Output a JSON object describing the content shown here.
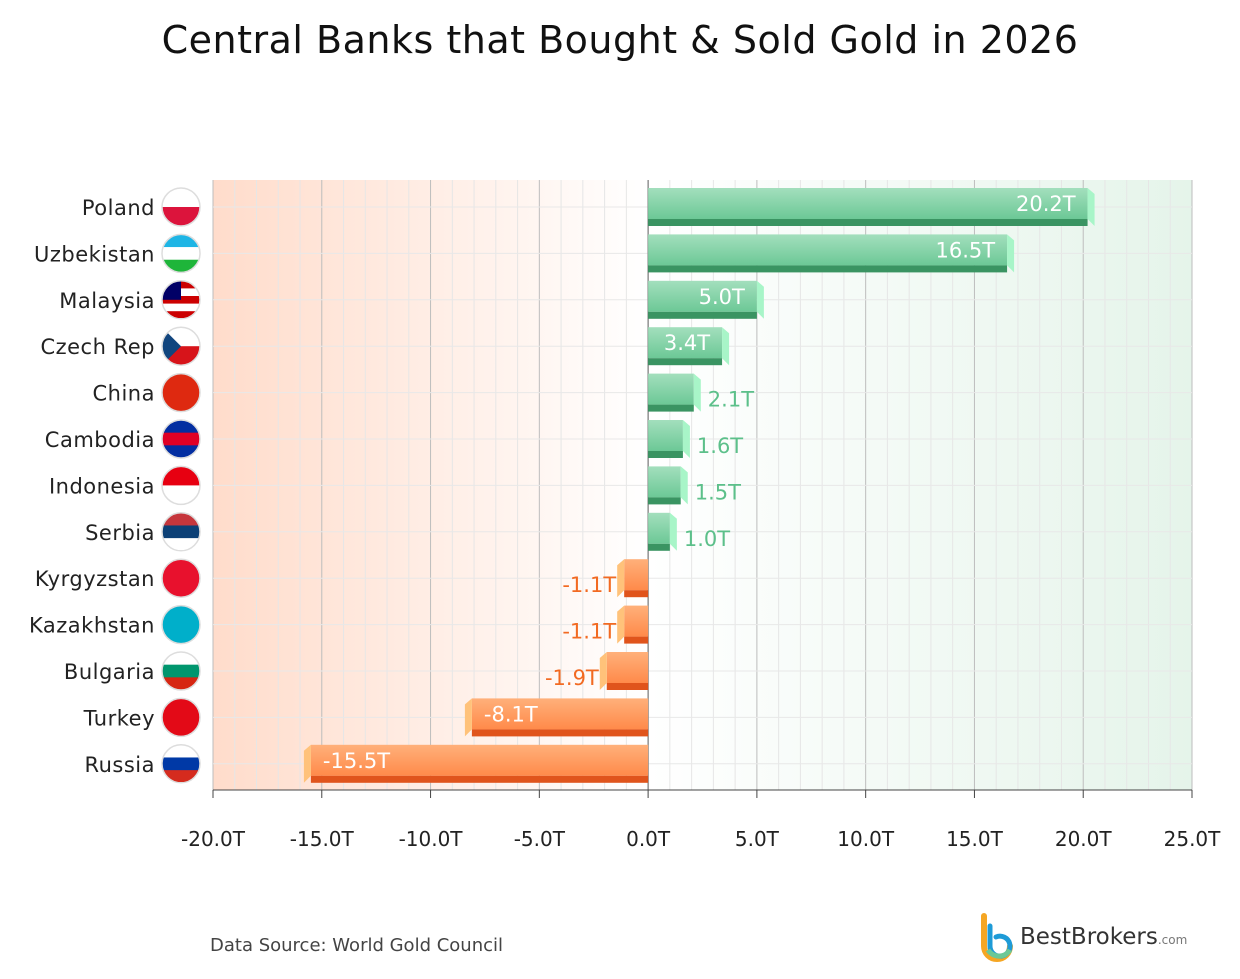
{
  "chart_data": {
    "type": "bar",
    "orientation": "horizontal",
    "title": "Central Banks that Bought & Sold Gold in 2026",
    "categories": [
      "Poland",
      "Uzbekistan",
      "Malaysia",
      "Czech Rep",
      "China",
      "Cambodia",
      "Indonesia",
      "Serbia",
      "Kyrgyzstan",
      "Kazakhstan",
      "Bulgaria",
      "Turkey",
      "Russia"
    ],
    "values": [
      20.2,
      16.5,
      5.0,
      3.4,
      2.1,
      1.6,
      1.5,
      1.0,
      -1.1,
      -1.1,
      -1.9,
      -8.1,
      -15.5
    ],
    "data_labels": [
      "20.2T",
      "16.5T",
      "5.0T",
      "3.4T",
      "2.1T",
      "1.6T",
      "1.5T",
      "1.0T",
      "-1.1T",
      "-1.1T",
      "-1.9T",
      "-8.1T",
      "-15.5T"
    ],
    "xlim": [
      -20,
      25
    ],
    "xticks": [
      -20,
      -15,
      -10,
      -5,
      0,
      5,
      10,
      15,
      20,
      25
    ],
    "xtick_labels": [
      "-20.0T",
      "-15.0T",
      "-10.0T",
      "-5.0T",
      "0.0T",
      "5.0T",
      "10.0T",
      "15.0T",
      "20.0T",
      "25.0T"
    ],
    "grid": true,
    "colors": {
      "positive": "#6cc896",
      "positive_dark": "#3a9462",
      "negative": "#ff8a4a",
      "negative_dark": "#e0541c",
      "pos_label": "#5cc08a",
      "neg_label": "#f26a22"
    }
  },
  "footer": {
    "source": "Data Source: World Gold Council",
    "logo": "BestBrokers",
    "logo_suffix": ".com"
  }
}
